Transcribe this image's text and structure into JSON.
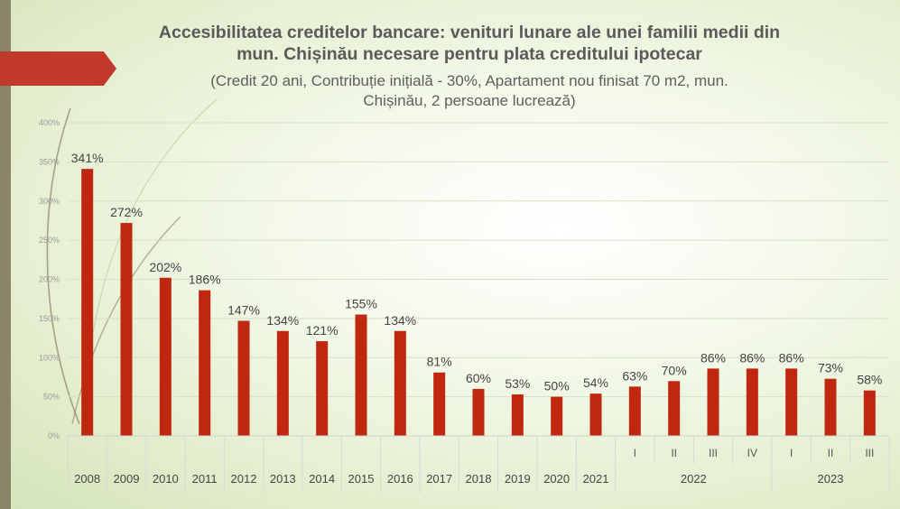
{
  "title_line1": "Accesibilitatea creditelor bancare: venituri lunare ale unei familii medii din",
  "title_line2": "mun. Chișinău necesare pentru plata creditului ipotecar",
  "subtitle_line1": "(Credit 20 ani, Contribuție inițială - 30%, Apartament nou finisat 70 m2, mun.",
  "subtitle_line2": "Chișinău, 2 persoane lucrează)",
  "colors": {
    "bar": "#c0270f",
    "accent_arrow": "#c0392b",
    "side_bar": "#8b8468"
  },
  "chart_data": {
    "type": "bar",
    "title": "Accesibilitatea creditelor bancare: venituri lunare ale unei familii medii din mun. Chișinău necesare pentru plata creditului ipotecar",
    "subtitle": "(Credit 20 ani, Contribuție inițială - 30%, Apartament nou finisat 70 m2, mun. Chișinău, 2 persoane lucrează)",
    "ylim": [
      0,
      400
    ],
    "yticks": [
      "0%",
      "50%",
      "100%",
      "150%",
      "200%",
      "250%",
      "300%",
      "350%",
      "400%"
    ],
    "grid": true,
    "categories": [
      "2008",
      "2009",
      "2010",
      "2011",
      "2012",
      "2013",
      "2014",
      "2015",
      "2016",
      "2017",
      "2018",
      "2019",
      "2020",
      "2021",
      "2022 I",
      "2022 II",
      "2022 III",
      "2022 IV",
      "2023 I",
      "2023 II",
      "2023 III"
    ],
    "values": [
      341,
      272,
      202,
      186,
      147,
      134,
      121,
      155,
      134,
      81,
      60,
      53,
      50,
      54,
      63,
      70,
      86,
      86,
      86,
      73,
      58
    ],
    "labels": [
      "341%",
      "272%",
      "202%",
      "186%",
      "147%",
      "134%",
      "121%",
      "155%",
      "134%",
      "81%",
      "60%",
      "53%",
      "50%",
      "54%",
      "63%",
      "70%",
      "86%",
      "86%",
      "86%",
      "73%",
      "58%"
    ],
    "year_labels": [
      "2008",
      "2009",
      "2010",
      "2011",
      "2012",
      "2013",
      "2014",
      "2015",
      "2016",
      "2017",
      "2018",
      "2019",
      "2020",
      "2021"
    ],
    "groups": [
      {
        "year": "2022",
        "quarters": [
          "I",
          "II",
          "III",
          "IV"
        ]
      },
      {
        "year": "2023",
        "quarters": [
          "I",
          "II",
          "III"
        ]
      }
    ]
  }
}
